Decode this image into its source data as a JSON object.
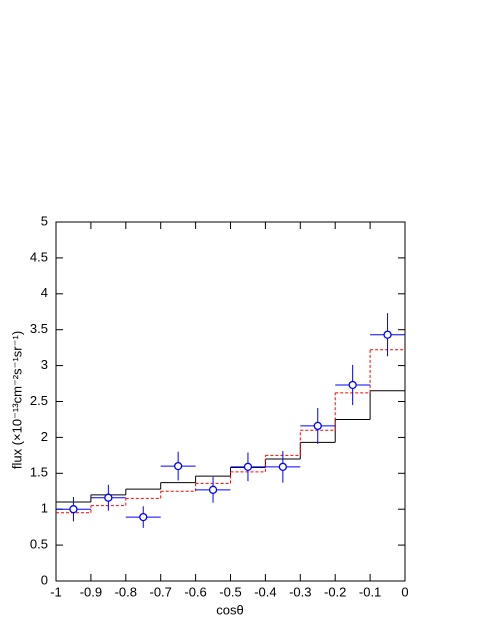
{
  "chart_data": {
    "type": "errorbar",
    "xlabel": "cosθ",
    "ylabel": "flux (×10⁻¹³cm⁻²s⁻¹sr⁻¹)",
    "xlim": [
      -1,
      0
    ],
    "ylim": [
      0,
      5
    ],
    "xticks": [
      -1,
      -0.9,
      -0.8,
      -0.7,
      -0.6,
      -0.5,
      -0.4,
      -0.3,
      -0.2,
      -0.1,
      0
    ],
    "yticks": [
      0,
      0.5,
      1,
      1.5,
      2,
      2.5,
      3,
      3.5,
      4,
      4.5,
      5
    ],
    "x": [
      -0.95,
      -0.85,
      -0.75,
      -0.65,
      -0.55,
      -0.45,
      -0.35,
      -0.25,
      -0.15,
      -0.05
    ],
    "bins": [
      -1,
      -0.9,
      -0.8,
      -0.7,
      -0.6,
      -0.5,
      -0.4,
      -0.3,
      -0.2,
      -0.1,
      0
    ],
    "series": [
      {
        "type": "step",
        "color": "#000000",
        "dashed": false,
        "values": [
          1.1,
          1.2,
          1.28,
          1.37,
          1.46,
          1.58,
          1.7,
          1.93,
          2.25,
          2.65
        ]
      },
      {
        "type": "step",
        "color": "#ff0000",
        "dashed": true,
        "values": [
          0.95,
          1.05,
          1.15,
          1.25,
          1.36,
          1.52,
          1.75,
          2.1,
          2.62,
          3.22
        ]
      },
      {
        "type": "points",
        "color": "#0000ff",
        "values": [
          1.0,
          1.16,
          0.89,
          1.6,
          1.27,
          1.59,
          1.59,
          2.16,
          2.73,
          3.43
        ],
        "errors": [
          0.17,
          0.18,
          0.15,
          0.2,
          0.18,
          0.2,
          0.22,
          0.25,
          0.28,
          0.3
        ],
        "xerr": [
          0.05,
          0.05,
          0.05,
          0.05,
          0.05,
          0.05,
          0.05,
          0.05,
          0.05,
          0.05
        ]
      }
    ]
  }
}
